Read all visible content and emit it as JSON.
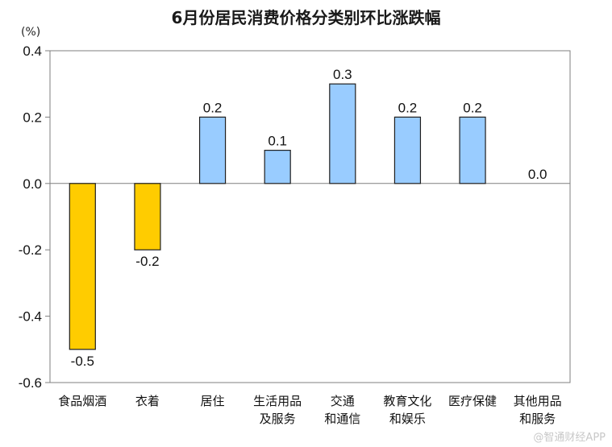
{
  "chart_data": {
    "type": "bar",
    "title": "6月份居民消费价格分类别环比涨跌幅",
    "unit": "(%)",
    "categories": [
      [
        "食品烟酒"
      ],
      [
        "衣着"
      ],
      [
        "居住"
      ],
      [
        "生活用品",
        "及服务"
      ],
      [
        "交通",
        "和通信"
      ],
      [
        "教育文化",
        "和娱乐"
      ],
      [
        "医疗保健"
      ],
      [
        "其他用品",
        "和服务"
      ]
    ],
    "values": [
      -0.5,
      -0.2,
      0.2,
      0.1,
      0.3,
      0.2,
      0.2,
      0.0
    ],
    "value_labels": [
      "-0.5",
      "-0.2",
      "0.2",
      "0.1",
      "0.3",
      "0.2",
      "0.2",
      "0.0"
    ],
    "ylim": [
      -0.6,
      0.4
    ],
    "yticks": [
      "0.4",
      "0.2",
      "0.0",
      "-0.2",
      "-0.4",
      "-0.6"
    ],
    "ytick_values": [
      0.4,
      0.2,
      0.0,
      -0.2,
      -0.4,
      -0.6
    ],
    "colors": {
      "positive": "#99CCFF",
      "negative": "#FFCC00",
      "border": "#1f1f1f"
    },
    "grid": false,
    "legend": "none"
  },
  "watermark": "@智通财经APP"
}
